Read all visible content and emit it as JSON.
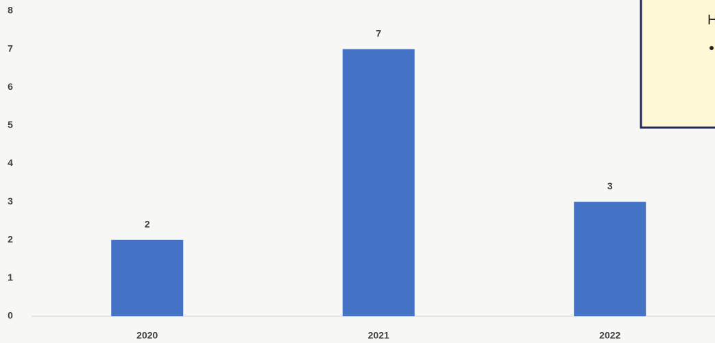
{
  "chart_data": {
    "type": "bar",
    "categories": [
      "2020",
      "2021",
      "2022"
    ],
    "values": [
      2,
      7,
      3
    ],
    "color": "#4472c4",
    "ylim": [
      0,
      8
    ],
    "yticks": [
      0,
      1,
      2,
      3,
      4,
      5,
      6,
      7,
      8
    ],
    "grid": false,
    "annotation": "H"
  }
}
